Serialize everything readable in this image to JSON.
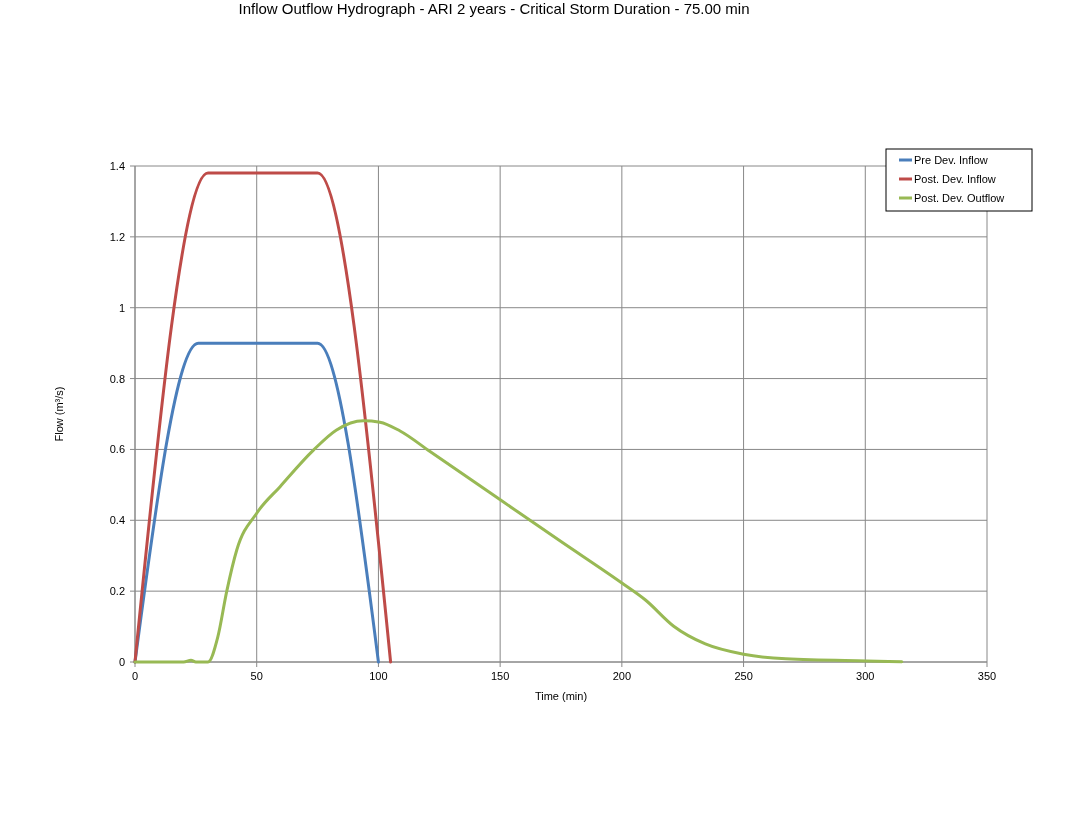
{
  "chart_data": {
    "type": "line",
    "title": "Inflow Outflow Hydrograph - ARI 2 years - Critical Storm Duration - 75.00 min",
    "xlabel": "Time (min)",
    "ylabel": "Flow (m³/s)",
    "xlim": [
      0,
      350
    ],
    "xticks": [
      0,
      50,
      100,
      150,
      200,
      250,
      300,
      350
    ],
    "ylim": [
      0,
      1.4
    ],
    "yticks": [
      0,
      0.2,
      0.4,
      0.6,
      0.8,
      1,
      1.2,
      1.4
    ],
    "grid": true,
    "legend": "top right",
    "marker": "none",
    "line_style": "solid",
    "series": [
      {
        "name": "Pre Dev. Inflow",
        "color": "#4a7ebb",
        "x": [
          0,
          26,
          75,
          100
        ],
        "values": [
          0,
          0.9,
          0.9,
          0
        ]
      },
      {
        "name": "Post. Dev. Inflow",
        "color": "#be4b48",
        "x": [
          0,
          30,
          75,
          105
        ],
        "values": [
          0,
          1.38,
          1.38,
          0
        ]
      },
      {
        "name": "Post. Dev. Outflow",
        "color": "#98b954",
        "x": [
          0,
          20,
          23,
          25,
          30,
          34,
          37.7,
          41.8,
          50,
          59.6,
          73.3,
          82.8,
          93.8,
          100.6,
          108.9,
          121.2,
          150.2,
          175,
          200,
          209.7,
          221.3,
          234.3,
          250,
          267.4,
          300.5,
          315
        ],
        "values": [
          0,
          0,
          0.005,
          0,
          0,
          0.07,
          0.2,
          0.316,
          0.42,
          0.495,
          0.598,
          0.655,
          0.681,
          0.677,
          0.652,
          0.594,
          0.457,
          0.34,
          0.223,
          0.175,
          0.101,
          0.051,
          0.022,
          0.009,
          0.003,
          0.001
        ]
      }
    ]
  }
}
